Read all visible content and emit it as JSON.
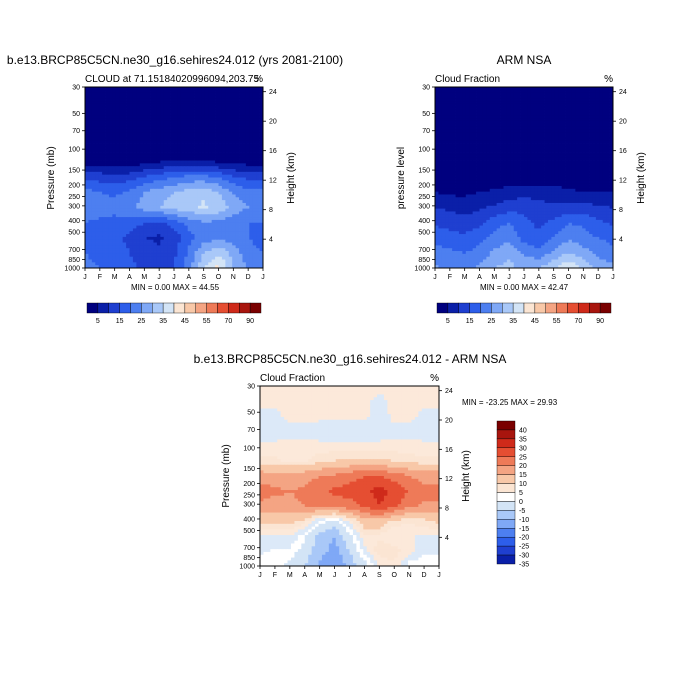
{
  "months": [
    "J",
    "F",
    "M",
    "A",
    "M",
    "J",
    "J",
    "A",
    "S",
    "O",
    "N",
    "D",
    "J"
  ],
  "pressure_ticks": [
    30,
    50,
    70,
    100,
    150,
    200,
    250,
    300,
    400,
    500,
    700,
    850,
    1000
  ],
  "height_ticks": [
    24,
    20,
    16,
    12,
    8,
    4
  ],
  "scale_abs": {
    "labels": [
      "5",
      "15",
      "25",
      "35",
      "45",
      "55",
      "70",
      "90"
    ],
    "colors": [
      "#00007F",
      "#0A1FA8",
      "#1F3FD0",
      "#2D5EEA",
      "#4D7FF0",
      "#7FA8F6",
      "#A9C8F8",
      "#D3E4F6",
      "#FBE5D3",
      "#F8C8A8",
      "#F4A483",
      "#EE7A58",
      "#E54E32",
      "#CF2A1A",
      "#A8150E",
      "#7A0000"
    ]
  },
  "scale_diff": {
    "labels": [
      "40",
      "35",
      "30",
      "25",
      "20",
      "15",
      "10",
      "5",
      "0",
      "-5",
      "-10",
      "-15",
      "-20",
      "-25",
      "-30",
      "-35",
      "-40"
    ],
    "colors": [
      "#7A0000",
      "#A8150E",
      "#CF2A1A",
      "#E54E32",
      "#EE7A58",
      "#F4A483",
      "#F8C8A8",
      "#FBE5D3",
      "#FFFFFF",
      "#D3E4F6",
      "#A9C8F8",
      "#7FA8F6",
      "#4D7FF0",
      "#2D5EEA",
      "#1F3FD0",
      "#0A1FA8",
      "#00007F"
    ]
  },
  "panels": {
    "model": {
      "title": "b.e13.BRCP85C5CN.ne30_g16.sehires24.012 (yrs 2081-2100)",
      "left_label": "CLOUD at 71.15184020996094,203.75",
      "right_label": "%",
      "y_label": "Pressure (mb)",
      "y2_label": "Height (km)",
      "stats": "MIN =   0.00 MAX =  44.55"
    },
    "obs": {
      "title": "ARM NSA",
      "left_label": "Cloud Fraction",
      "right_label": "%",
      "y_label": "pressure level",
      "y2_label": "Height (km)",
      "stats": "MIN =   0.00 MAX =  42.47"
    },
    "diff": {
      "title": "b.e13.BRCP85C5CN.ne30_g16.sehires24.012 - ARM NSA",
      "left_label": "Cloud Fraction",
      "right_label": "%",
      "y_label": "Pressure (mb)",
      "y2_label": "Height (km)",
      "stats": "MIN = -23.25 MAX =  29.93"
    }
  },
  "chart_data": [
    {
      "type": "heatmap",
      "title": "b.e13.BRCP85C5CN.ne30_g16.sehires24.012 (yrs 2081-2100)",
      "subtitle": "CLOUD at 71.15184020996094,203.75",
      "units": "%",
      "xlabel": "",
      "ylabel": "Pressure (mb)",
      "y2label": "Height (km)",
      "x": [
        "J",
        "F",
        "M",
        "A",
        "M",
        "J",
        "J",
        "A",
        "S",
        "O",
        "N",
        "D",
        "J"
      ],
      "y": [
        30,
        50,
        70,
        100,
        150,
        200,
        250,
        300,
        400,
        500,
        700,
        850,
        1000
      ],
      "values": [
        [
          0,
          0,
          0,
          0,
          0,
          0,
          0,
          0,
          0,
          0,
          0,
          0,
          0
        ],
        [
          0,
          0,
          0,
          0,
          0,
          0,
          0,
          0,
          0,
          0,
          0,
          0,
          0
        ],
        [
          0,
          0,
          0,
          0,
          0,
          0,
          0,
          0,
          0,
          0,
          0,
          0,
          0
        ],
        [
          0,
          0,
          0,
          0,
          0,
          0,
          0,
          0,
          0,
          0,
          0,
          0,
          0
        ],
        [
          0,
          0,
          0,
          0,
          0,
          0,
          0,
          0,
          0,
          0,
          0,
          0,
          0
        ],
        [
          3,
          3,
          2,
          2,
          4,
          5,
          6,
          6,
          6,
          5,
          4,
          3,
          3
        ],
        [
          14,
          13,
          12,
          13,
          16,
          18,
          20,
          22,
          22,
          20,
          16,
          14,
          14
        ],
        [
          22,
          20,
          19,
          21,
          25,
          28,
          30,
          32,
          34,
          30,
          25,
          22,
          22
        ],
        [
          24,
          22,
          22,
          24,
          27,
          30,
          32,
          33,
          36,
          33,
          28,
          25,
          24
        ],
        [
          20,
          19,
          18,
          18,
          15,
          14,
          17,
          22,
          24,
          24,
          22,
          20,
          20
        ],
        [
          18,
          17,
          16,
          14,
          10,
          9,
          12,
          18,
          22,
          24,
          22,
          20,
          18
        ],
        [
          20,
          18,
          17,
          15,
          13,
          11,
          14,
          21,
          30,
          34,
          28,
          22,
          20
        ],
        [
          22,
          20,
          18,
          16,
          14,
          12,
          15,
          23,
          34,
          42,
          30,
          24,
          22
        ]
      ],
      "zlim": [
        0,
        44.55
      ],
      "min": 0.0,
      "max": 44.55
    },
    {
      "type": "heatmap",
      "title": "ARM NSA",
      "subtitle": "Cloud Fraction",
      "units": "%",
      "xlabel": "",
      "ylabel": "pressure level",
      "y2label": "Height (km)",
      "x": [
        "J",
        "F",
        "M",
        "A",
        "M",
        "J",
        "J",
        "A",
        "S",
        "O",
        "N",
        "D",
        "J"
      ],
      "y": [
        30,
        50,
        70,
        100,
        150,
        200,
        250,
        300,
        400,
        500,
        700,
        850,
        1000
      ],
      "values": [
        [
          0,
          0,
          0,
          0,
          0,
          0,
          0,
          0,
          0,
          0,
          0,
          0,
          0
        ],
        [
          0,
          0,
          0,
          0,
          0,
          0,
          0,
          0,
          0,
          0,
          0,
          0,
          0
        ],
        [
          0,
          0,
          0,
          0,
          0,
          0,
          0,
          0,
          0,
          0,
          0,
          0,
          0
        ],
        [
          0,
          0,
          0,
          0,
          0,
          0,
          0,
          0,
          0,
          0,
          0,
          0,
          0
        ],
        [
          0,
          0,
          0,
          0,
          0,
          0,
          0,
          0,
          0,
          0,
          0,
          0,
          0
        ],
        [
          0,
          0,
          0,
          0,
          0,
          0,
          0,
          0,
          0,
          0,
          0,
          0,
          0
        ],
        [
          1,
          1,
          0,
          0,
          1,
          2,
          2,
          2,
          2,
          2,
          1,
          1,
          1
        ],
        [
          5,
          4,
          4,
          5,
          6,
          7,
          8,
          8,
          7,
          6,
          5,
          5,
          5
        ],
        [
          10,
          9,
          8,
          9,
          11,
          13,
          14,
          12,
          11,
          12,
          12,
          11,
          10
        ],
        [
          14,
          13,
          12,
          14,
          18,
          20,
          16,
          14,
          16,
          20,
          19,
          16,
          14
        ],
        [
          18,
          17,
          16,
          18,
          22,
          24,
          18,
          16,
          20,
          24,
          22,
          20,
          18
        ],
        [
          22,
          21,
          20,
          22,
          26,
          28,
          24,
          22,
          26,
          30,
          27,
          24,
          22
        ],
        [
          26,
          24,
          24,
          26,
          30,
          32,
          28,
          30,
          34,
          40,
          34,
          28,
          26
        ]
      ],
      "zlim": [
        0,
        42.47
      ],
      "min": 0.0,
      "max": 42.47
    },
    {
      "type": "heatmap",
      "title": "b.e13.BRCP85C5CN.ne30_g16.sehires24.012 - ARM NSA",
      "subtitle": "Cloud Fraction",
      "units": "%",
      "xlabel": "",
      "ylabel": "Pressure (mb)",
      "y2label": "Height (km)",
      "x": [
        "J",
        "F",
        "M",
        "A",
        "M",
        "J",
        "J",
        "A",
        "S",
        "O",
        "N",
        "D",
        "J"
      ],
      "y": [
        30,
        50,
        70,
        100,
        150,
        200,
        250,
        300,
        400,
        500,
        700,
        850,
        1000
      ],
      "values": [
        [
          1,
          1,
          1,
          1,
          1,
          1,
          1,
          1,
          1,
          1,
          1,
          1,
          1
        ],
        [
          1,
          1,
          1,
          1,
          1,
          1,
          1,
          1,
          -1,
          1,
          1,
          1,
          1
        ],
        [
          -1,
          -1,
          1,
          1,
          1,
          1,
          1,
          1,
          -2,
          1,
          1,
          -1,
          -1
        ],
        [
          -2,
          -2,
          -1,
          -1,
          -2,
          -2,
          -2,
          -2,
          -2,
          -1,
          -1,
          -2,
          -2
        ],
        [
          1,
          1,
          1,
          1,
          1,
          1,
          1,
          1,
          1,
          1,
          1,
          1,
          1
        ],
        [
          3,
          3,
          2,
          2,
          4,
          5,
          6,
          6,
          6,
          5,
          4,
          3,
          3
        ],
        [
          13,
          12,
          12,
          13,
          15,
          16,
          18,
          20,
          20,
          18,
          15,
          13,
          13
        ],
        [
          17,
          16,
          15,
          16,
          19,
          21,
          22,
          24,
          27,
          24,
          20,
          17,
          17
        ],
        [
          14,
          13,
          14,
          15,
          16,
          17,
          18,
          21,
          25,
          21,
          16,
          14,
          14
        ],
        [
          6,
          6,
          6,
          4,
          -3,
          -6,
          1,
          8,
          8,
          4,
          3,
          4,
          6
        ],
        [
          0,
          0,
          0,
          -4,
          -12,
          -15,
          -6,
          2,
          2,
          0,
          0,
          0,
          0
        ],
        [
          -2,
          -3,
          -3,
          -7,
          -13,
          -17,
          -10,
          -1,
          4,
          4,
          1,
          -2,
          -2
        ],
        [
          -4,
          -4,
          -6,
          -10,
          -16,
          -20,
          -13,
          -7,
          0,
          2,
          -4,
          -4,
          -4
        ]
      ],
      "zlim": [
        -40,
        40
      ],
      "min": -23.25,
      "max": 29.93
    }
  ]
}
